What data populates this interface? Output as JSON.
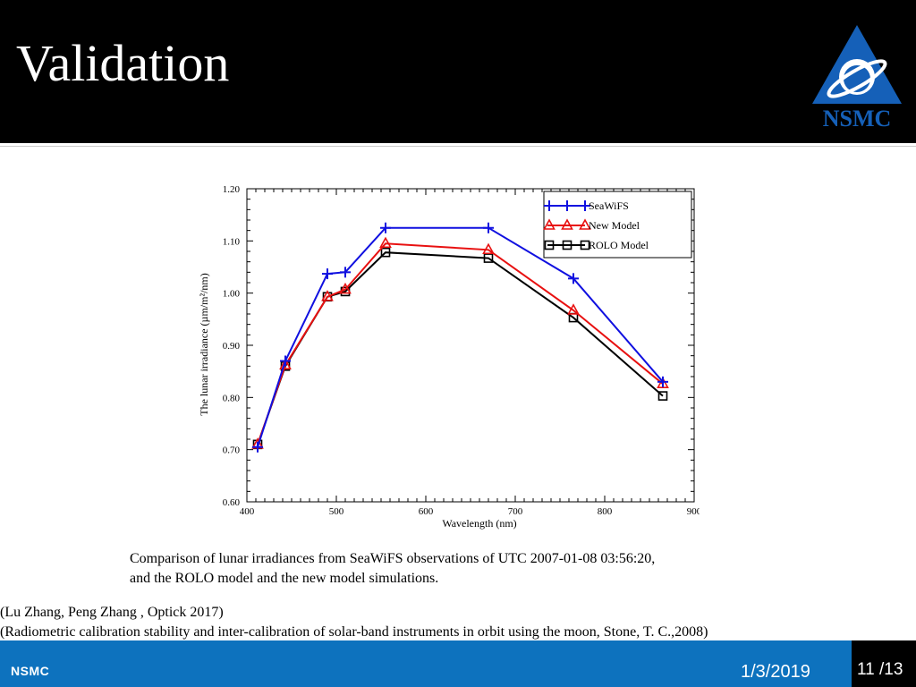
{
  "slide": {
    "title": "Validation",
    "logo_text": "NSMC"
  },
  "caption": {
    "line1": "Comparison of lunar irradiances from SeaWiFS observations of UTC 2007-01-08 03:56:20,",
    "line2": "and the ROLO model and the new model simulations."
  },
  "references": {
    "line1": "(Lu Zhang, Peng Zhang , Optick 2017)",
    "line2": "(Radiometric calibration stability and inter-calibration of solar-band instruments in orbit using the moon, Stone, T. C.,2008)"
  },
  "footer": {
    "org": "NSMC",
    "date": "1/3/2019",
    "page": "11 /13"
  },
  "colors": {
    "header_bg": "#000000",
    "footer_bg": "#0d72be",
    "logo_blue": "#1560b8",
    "series_seawifs": "#1010e0",
    "series_new_model": "#e81010",
    "series_rolo": "#000000"
  },
  "chart_data": {
    "type": "line",
    "xlabel": "Wavelength (nm)",
    "ylabel": "The lunar irradiance (µm/m²/nm)",
    "xlim": [
      400,
      900
    ],
    "ylim": [
      0.6,
      1.2
    ],
    "xticks": [
      "400",
      "500",
      "600",
      "700",
      "800",
      "900"
    ],
    "yticks": [
      "0.60",
      "0.70",
      "0.80",
      "0.90",
      "1.00",
      "1.10",
      "1.20"
    ],
    "grid": false,
    "legend_position": "top-right",
    "series": [
      {
        "name": "SeaWiFS",
        "marker": "plus",
        "x": [
          412,
          443,
          490,
          510,
          555,
          670,
          765,
          865
        ],
        "y": [
          0.705,
          0.87,
          1.037,
          1.04,
          1.125,
          1.125,
          1.028,
          0.83
        ]
      },
      {
        "name": "New Model",
        "marker": "triangle",
        "x": [
          412,
          443,
          490,
          510,
          555,
          670,
          765,
          865
        ],
        "y": [
          0.71,
          0.862,
          0.993,
          1.007,
          1.095,
          1.083,
          0.967,
          0.826
        ]
      },
      {
        "name": "ROLO Model",
        "marker": "square",
        "x": [
          412,
          443,
          490,
          510,
          555,
          670,
          765,
          865
        ],
        "y": [
          0.71,
          0.86,
          0.993,
          1.003,
          1.078,
          1.067,
          0.953,
          0.803
        ]
      }
    ]
  }
}
